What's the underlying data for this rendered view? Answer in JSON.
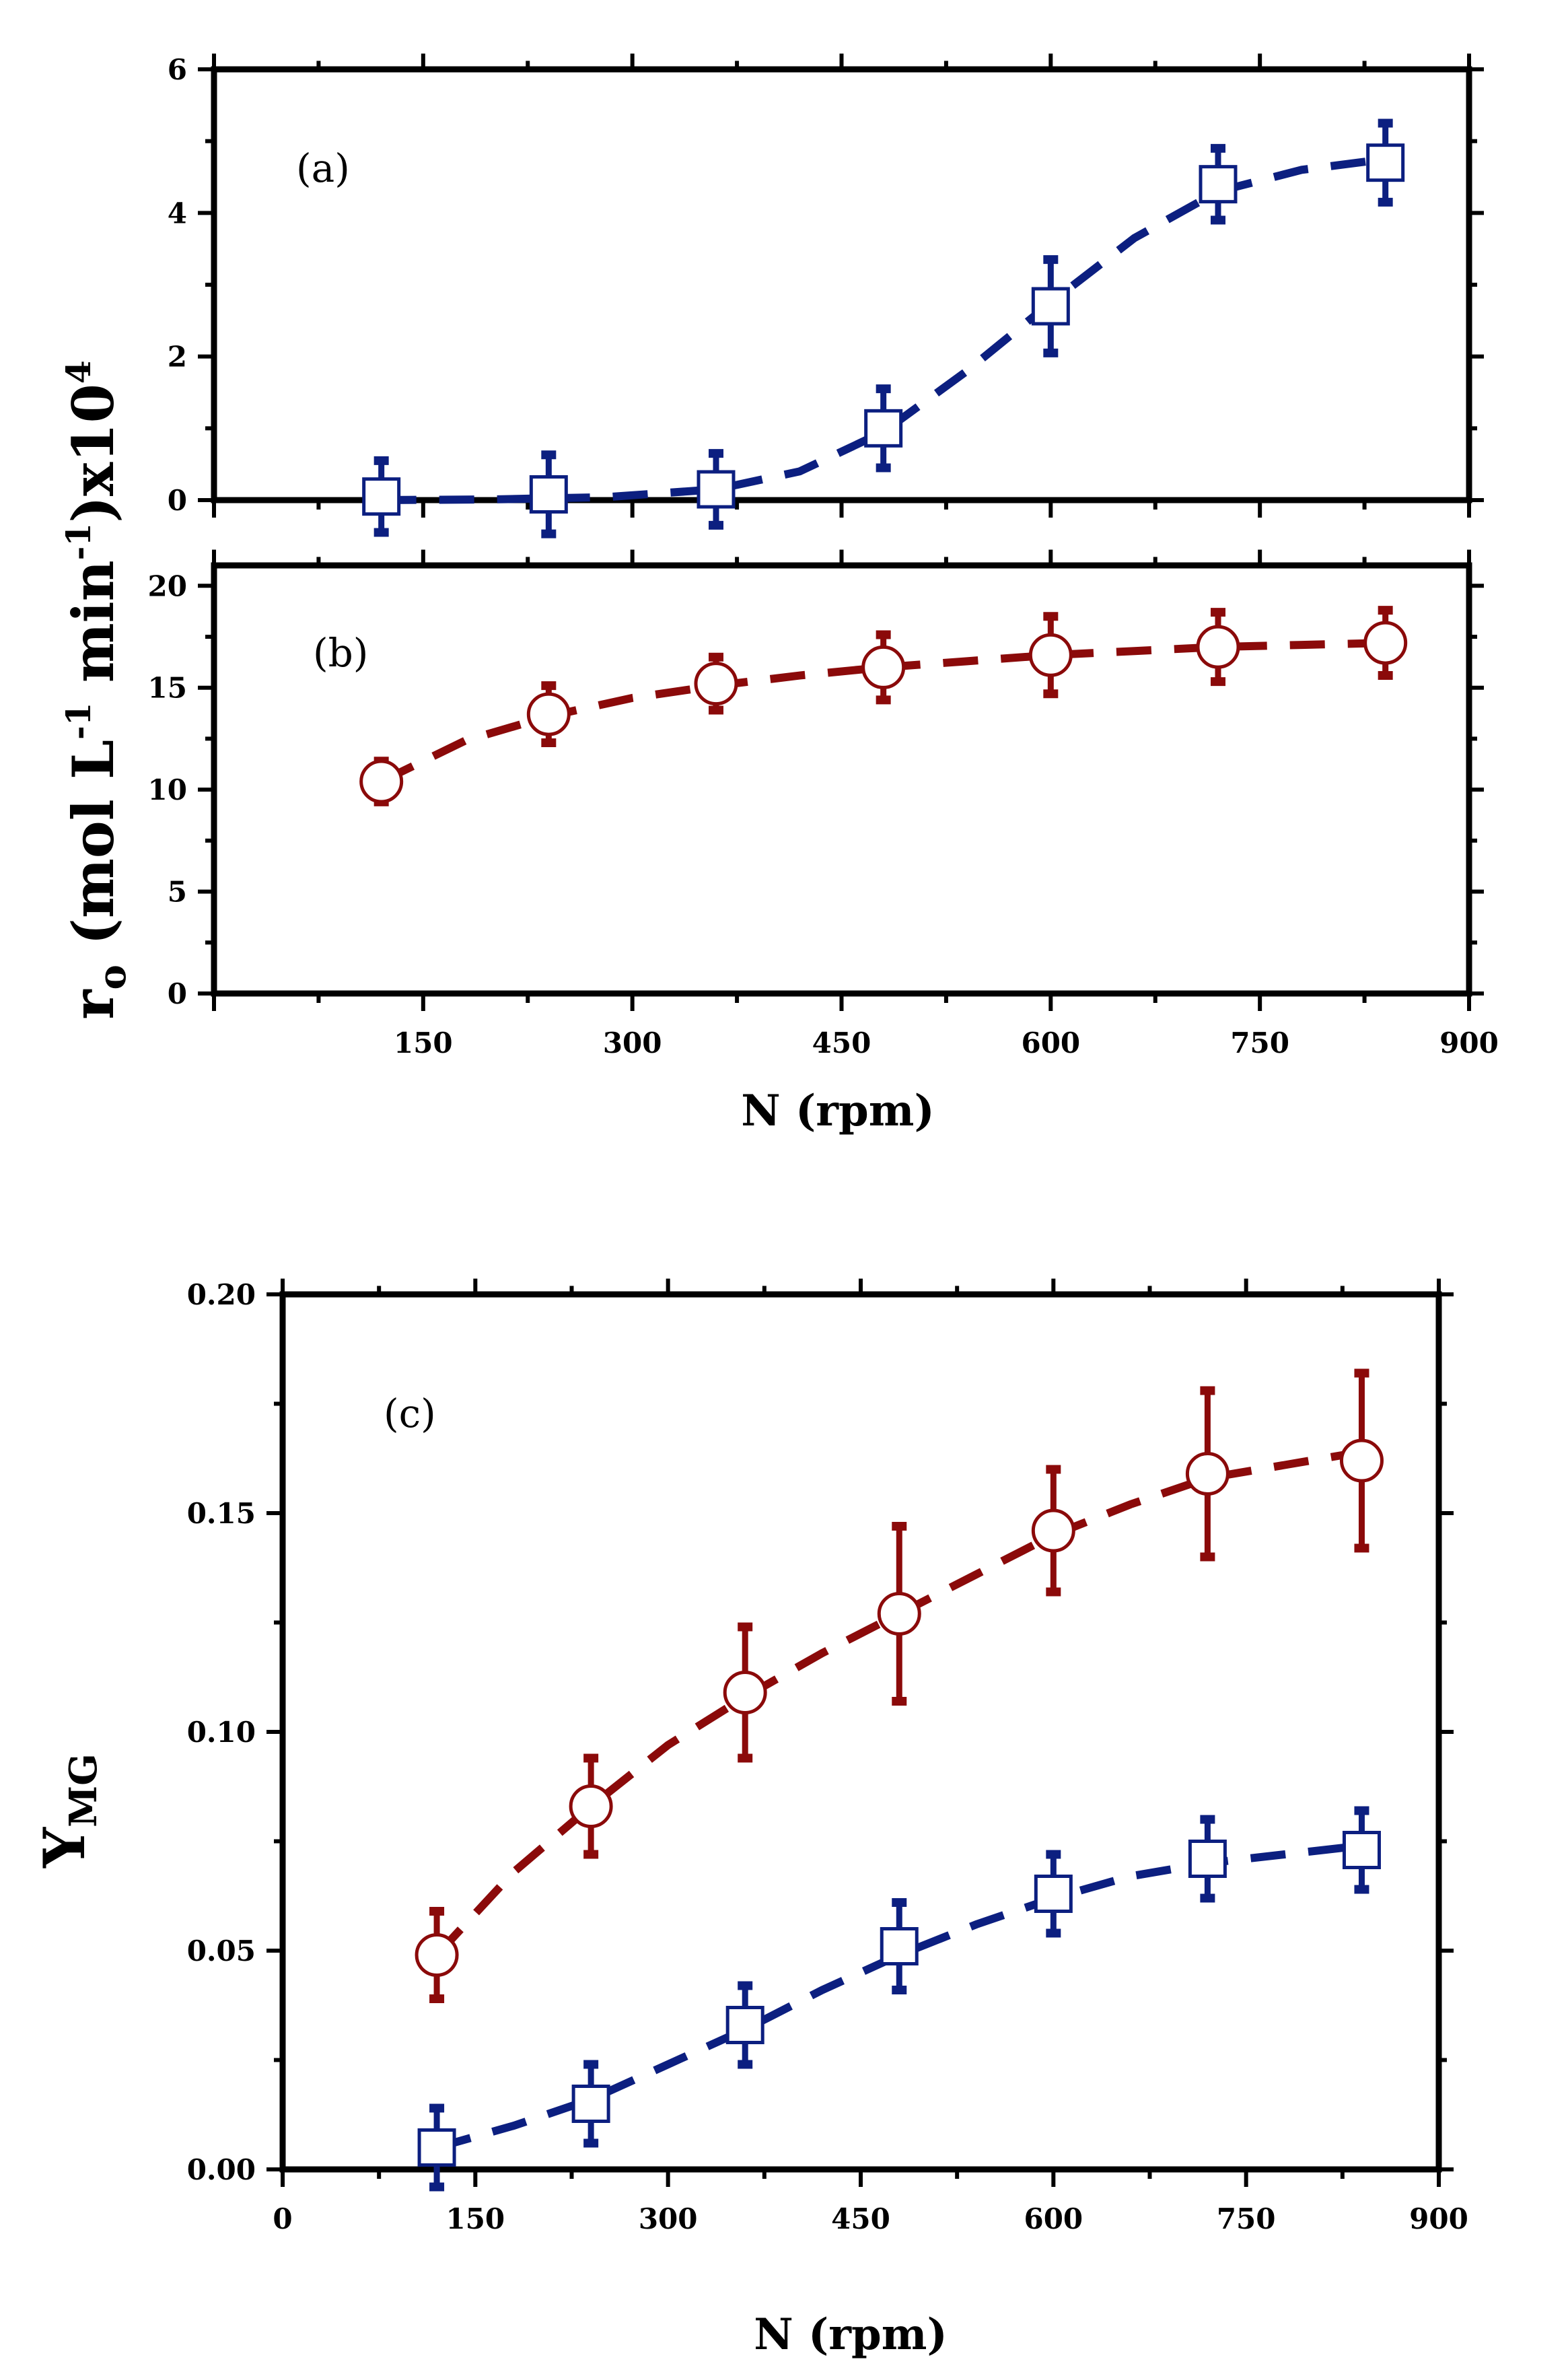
{
  "colors": {
    "blue": "#0c1f80",
    "red": "#8b0a0a",
    "axis": "#000000"
  },
  "chart_data": [
    {
      "id": "a",
      "type": "scatter",
      "panel_label": "(a)",
      "x_ticks": [
        150,
        300,
        450,
        600,
        750,
        900
      ],
      "y_ticks": [
        0,
        2,
        4,
        6
      ],
      "xlim": [
        0,
        900
      ],
      "ylim": [
        0,
        6
      ],
      "series": [
        {
          "name": "blue squares",
          "marker": "square",
          "color": "blue",
          "x": [
            120,
            240,
            360,
            480,
            600,
            720,
            840
          ],
          "y": [
            0.05,
            0.08,
            0.15,
            1.0,
            2.7,
            4.4,
            4.7
          ],
          "err": [
            0.5,
            0.55,
            0.5,
            0.55,
            0.65,
            0.5,
            0.55
          ],
          "fit_x": [
            120,
            200,
            280,
            360,
            420,
            480,
            540,
            600,
            660,
            720,
            780,
            840
          ],
          "fit_y": [
            0.0,
            0.01,
            0.04,
            0.15,
            0.4,
            0.95,
            1.8,
            2.75,
            3.65,
            4.3,
            4.6,
            4.75
          ]
        }
      ]
    },
    {
      "id": "b",
      "type": "scatter",
      "panel_label": "(b)",
      "x_ticks": [
        150,
        300,
        450,
        600,
        750,
        900
      ],
      "y_ticks": [
        0,
        5,
        10,
        15,
        20
      ],
      "xlim": [
        0,
        900
      ],
      "ylim": [
        0,
        21
      ],
      "series": [
        {
          "name": "red circles",
          "marker": "circle",
          "color": "red",
          "x": [
            120,
            240,
            360,
            480,
            600,
            720,
            840
          ],
          "y": [
            10.4,
            13.7,
            15.2,
            16.0,
            16.6,
            17.0,
            17.2
          ],
          "err": [
            1.0,
            1.4,
            1.3,
            1.6,
            1.9,
            1.7,
            1.6
          ],
          "fit_x": [
            120,
            180,
            240,
            300,
            360,
            420,
            480,
            540,
            600,
            660,
            720,
            780,
            840
          ],
          "fit_y": [
            10.4,
            12.4,
            13.6,
            14.5,
            15.1,
            15.6,
            16.0,
            16.3,
            16.6,
            16.8,
            17.0,
            17.1,
            17.2
          ]
        }
      ]
    },
    {
      "id": "c",
      "type": "scatter",
      "panel_label": "(c)",
      "x_ticks": [
        0,
        150,
        300,
        450,
        600,
        750,
        900
      ],
      "y_ticks": [
        "0.00",
        "0.05",
        "0.10",
        "0.15",
        "0.20"
      ],
      "xlim": [
        0,
        900
      ],
      "ylim": [
        0,
        0.2
      ],
      "xlabel": "N (rpm)",
      "ylabel": "YMG",
      "series": [
        {
          "name": "red circles",
          "marker": "circle",
          "color": "red",
          "x": [
            120,
            240,
            360,
            480,
            600,
            720,
            840
          ],
          "y": [
            0.049,
            0.083,
            0.109,
            0.127,
            0.146,
            0.159,
            0.162
          ],
          "err": [
            0.01,
            0.011,
            0.015,
            0.02,
            0.014,
            0.019,
            0.02
          ],
          "fit_x": [
            120,
            180,
            240,
            300,
            360,
            420,
            480,
            540,
            600,
            660,
            720,
            780,
            840
          ],
          "fit_y": [
            0.049,
            0.068,
            0.083,
            0.097,
            0.108,
            0.118,
            0.127,
            0.136,
            0.145,
            0.152,
            0.158,
            0.161,
            0.164
          ]
        },
        {
          "name": "blue squares",
          "marker": "square",
          "color": "blue",
          "x": [
            120,
            240,
            360,
            480,
            600,
            720,
            840
          ],
          "y": [
            0.005,
            0.015,
            0.033,
            0.051,
            0.063,
            0.071,
            0.073
          ],
          "err": [
            0.009,
            0.009,
            0.009,
            0.01,
            0.009,
            0.009,
            0.009
          ],
          "fit_x": [
            120,
            180,
            240,
            300,
            360,
            420,
            480,
            540,
            600,
            660,
            720,
            780,
            840
          ],
          "fit_y": [
            0.005,
            0.01,
            0.016,
            0.024,
            0.032,
            0.041,
            0.049,
            0.056,
            0.062,
            0.067,
            0.07,
            0.072,
            0.074
          ]
        }
      ]
    }
  ],
  "top_block": {
    "xlabel": "N (rpm)",
    "ylabel_main": "r",
    "ylabel_sub": "o",
    "ylabel_rest_1": " (mol L",
    "ylabel_sup_1": "-1",
    "ylabel_rest_2": " min",
    "ylabel_sup_2": "-1",
    "ylabel_rest_3": ")x10",
    "ylabel_sup_3": "4"
  },
  "bottom_block": {
    "ylabel_main": "Y",
    "ylabel_sub": "MG"
  }
}
